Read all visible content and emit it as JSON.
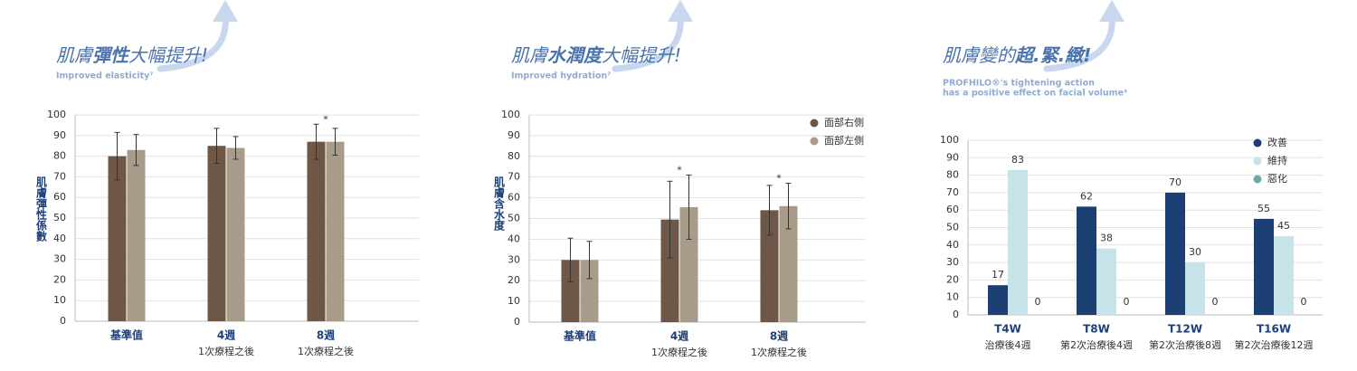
{
  "chart_data": [
    {
      "type": "bar",
      "title": [
        "肌膚",
        "彈性",
        "大幅提升!"
      ],
      "title_bold": [
        false,
        true,
        false
      ],
      "subtitle": [
        "Improved elasticity⁷"
      ],
      "y_label": "肌膚彈性係數",
      "categories": [
        "基準值",
        "4週",
        "8週"
      ],
      "category_notes": [
        null,
        "1次療程之後",
        "1次療程之後"
      ],
      "annotations": [
        null,
        null,
        "*"
      ],
      "series": [
        {
          "color": "#6e5746",
          "values": [
            80,
            85,
            87
          ],
          "errors": [
            11.5,
            8.5,
            8.5
          ]
        },
        {
          "color": "#a99b8a",
          "values": [
            83,
            84,
            87
          ],
          "errors": [
            7.5,
            5.5,
            6.5
          ]
        }
      ],
      "ylim": [
        0,
        100
      ],
      "yticks": [
        0,
        10,
        20,
        30,
        40,
        50,
        60,
        70,
        80,
        90,
        100
      ],
      "grid": true
    },
    {
      "type": "bar",
      "title": [
        "肌膚",
        "水潤度",
        "大幅提升!"
      ],
      "title_bold": [
        false,
        true,
        false
      ],
      "subtitle": [
        "Improved hydration⁷"
      ],
      "y_label": "肌膚含水度",
      "categories": [
        "基準值",
        "4週",
        "8週"
      ],
      "category_notes": [
        null,
        "1次療程之後",
        "1次療程之後"
      ],
      "annotations": [
        null,
        "*",
        "*"
      ],
      "series": [
        {
          "name": "面部右側",
          "color": "#6e5746",
          "values": [
            30,
            49.5,
            54
          ],
          "errors": [
            10.5,
            18.5,
            12
          ]
        },
        {
          "name": "面部左側",
          "color": "#a99b8a",
          "values": [
            30,
            55.5,
            56
          ],
          "errors": [
            9,
            15.5,
            11
          ]
        }
      ],
      "ylim": [
        0,
        100
      ],
      "yticks": [
        0,
        10,
        20,
        30,
        40,
        50,
        60,
        70,
        80,
        90,
        100
      ],
      "grid": true
    },
    {
      "type": "bar",
      "title": [
        "肌膚變的",
        "超.緊.緻!"
      ],
      "title_bold": [
        false,
        true
      ],
      "subtitle": [
        "PROFHILO®'s tightening action",
        "has a positive effect on facial volume⁴"
      ],
      "categories": [
        "T4W",
        "T8W",
        "T12W",
        "T16W"
      ],
      "category_notes": [
        "治療後4週",
        "第2次治療後4週",
        "第2次治療後8週",
        "第2次治療後12週"
      ],
      "series": [
        {
          "name": "改善",
          "color": "#1b3f73",
          "values": [
            17,
            62,
            70,
            55
          ]
        },
        {
          "name": "維持",
          "color": "#c6e3ea",
          "values": [
            83,
            38,
            30,
            45
          ]
        },
        {
          "name": "惡化",
          "color": "#6aa9a9",
          "values": [
            0,
            0,
            0,
            0
          ]
        }
      ],
      "value_labels_shown": true,
      "ylim": [
        0,
        100
      ],
      "yticks": [
        0,
        10,
        20,
        30,
        40,
        50,
        60,
        70,
        80,
        90,
        100
      ],
      "grid": true
    }
  ]
}
